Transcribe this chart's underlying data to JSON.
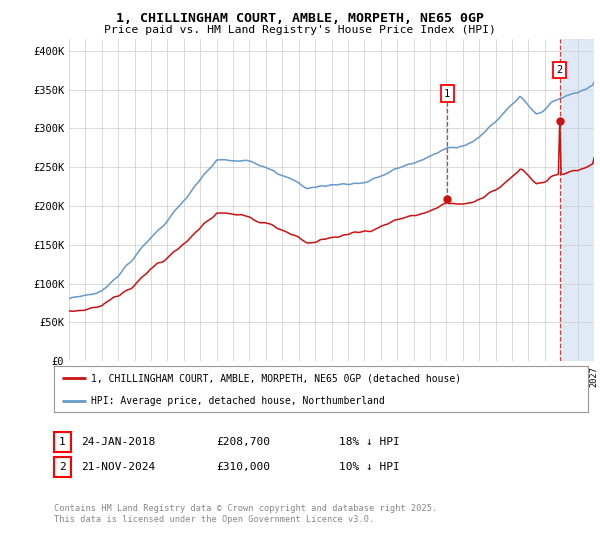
{
  "title": "1, CHILLINGHAM COURT, AMBLE, MORPETH, NE65 0GP",
  "subtitle": "Price paid vs. HM Land Registry's House Price Index (HPI)",
  "ytick_labels": [
    "£0",
    "£50K",
    "£100K",
    "£150K",
    "£200K",
    "£250K",
    "£300K",
    "£350K",
    "£400K"
  ],
  "ytick_values": [
    0,
    50000,
    100000,
    150000,
    200000,
    250000,
    300000,
    350000,
    400000
  ],
  "ylim": [
    0,
    415000
  ],
  "xmin": 1995,
  "xmax": 2027,
  "hpi_color": "#6699cc",
  "price_color": "#cc1111",
  "marker1_x": 2018.06,
  "marker1_y": 208700,
  "marker2_x": 2024.9,
  "marker2_y": 310000,
  "shade_start": 2025.1,
  "shade_color": "#ccddf0",
  "legend_label1": "1, CHILLINGHAM COURT, AMBLE, MORPETH, NE65 0GP (detached house)",
  "legend_label2": "HPI: Average price, detached house, Northumberland",
  "row1": [
    "1",
    "24-JAN-2018",
    "£208,700",
    "18% ↓ HPI"
  ],
  "row2": [
    "2",
    "21-NOV-2024",
    "£310,000",
    "10% ↓ HPI"
  ],
  "footer1": "Contains HM Land Registry data © Crown copyright and database right 2025.",
  "footer2": "This data is licensed under the Open Government Licence v3.0.",
  "bg_color": "#ffffff",
  "grid_color": "#cccccc"
}
